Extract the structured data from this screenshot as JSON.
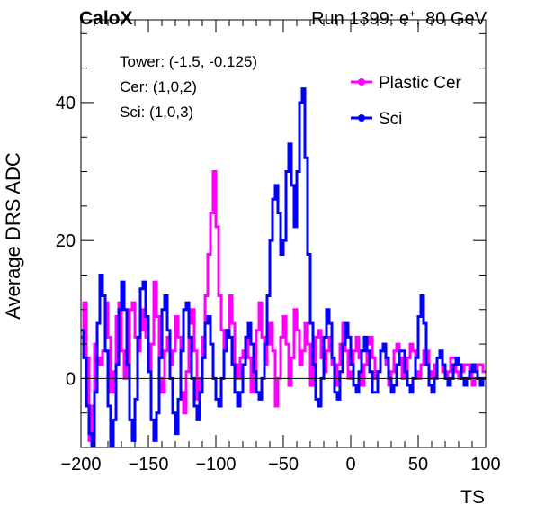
{
  "header": {
    "experiment": "CaloX",
    "run_prefix": "Run 1399: e",
    "run_sup": "+",
    "run_suffix": ", 80 GeV"
  },
  "info": {
    "tower": "Tower: (-1.5, -0.125)",
    "cer": "Cer: (1,0,2)",
    "sci": "Sci: (1,0,3)"
  },
  "chart_data": {
    "type": "line",
    "style": "step",
    "xlabel": "TS",
    "ylabel": "Average DRS ADC",
    "xlim": [
      -200,
      100
    ],
    "ylim": [
      -10,
      52
    ],
    "xticks": [
      -200,
      -150,
      -100,
      -50,
      0,
      50,
      100
    ],
    "yticks": [
      0,
      20,
      40
    ],
    "grid": false,
    "legend_position": "top-right",
    "series": [
      {
        "name": "Plastic Cer",
        "color": "#ff00ff",
        "x_start": -200,
        "x_step": 2,
        "values": [
          6,
          11,
          3,
          -9,
          -4,
          5,
          3,
          2,
          4,
          11,
          6,
          -2,
          1,
          9,
          11,
          4,
          0,
          2,
          10,
          11,
          6,
          4,
          7,
          10,
          6,
          1,
          5,
          14,
          9,
          0,
          -2,
          4,
          6,
          2,
          4,
          9,
          6,
          -2,
          -5,
          1,
          8,
          10,
          4,
          -3,
          0,
          6,
          12,
          18,
          24,
          30,
          22,
          12,
          7,
          4,
          7,
          12,
          8,
          2,
          0,
          3,
          4,
          6,
          3,
          -2,
          1,
          7,
          11,
          6,
          2,
          5,
          8,
          4,
          -4,
          0,
          6,
          9,
          5,
          -1,
          3,
          10,
          7,
          2,
          4,
          8,
          5,
          -1,
          2,
          6,
          7,
          3,
          1,
          4,
          6,
          2,
          -1,
          2,
          5,
          8,
          4,
          0,
          1,
          4,
          6,
          3,
          -1,
          2,
          5,
          6,
          3,
          0,
          1,
          4,
          5,
          2,
          -1,
          1,
          4,
          5,
          3,
          0,
          1,
          3,
          5,
          4,
          1,
          0,
          2,
          4,
          4,
          1,
          0,
          2,
          3,
          3,
          1,
          0,
          1,
          3,
          3,
          1,
          0,
          1,
          2,
          2,
          1,
          -1,
          0,
          2,
          2,
          1
        ]
      },
      {
        "name": "Sci",
        "color": "#0000ff",
        "x_start": -200,
        "x_step": 2,
        "values": [
          7,
          3,
          -4,
          -8,
          -10,
          -2,
          8,
          15,
          12,
          4,
          -4,
          -10,
          -6,
          2,
          10,
          14,
          10,
          2,
          -6,
          -9,
          -3,
          6,
          13,
          14,
          9,
          1,
          -6,
          -9,
          -5,
          3,
          10,
          12,
          7,
          0,
          -5,
          -8,
          -3,
          4,
          10,
          11,
          6,
          0,
          -4,
          -6,
          -2,
          3,
          8,
          9,
          5,
          0,
          -3,
          -4,
          0,
          4,
          7,
          6,
          2,
          -2,
          -4,
          -2,
          2,
          6,
          8,
          5,
          1,
          -2,
          -3,
          0,
          5,
          12,
          20,
          26,
          28,
          24,
          18,
          20,
          30,
          34,
          28,
          22,
          30,
          40,
          42,
          32,
          18,
          8,
          2,
          -3,
          -4,
          0,
          6,
          10,
          8,
          3,
          -2,
          -3,
          1,
          5,
          8,
          6,
          2,
          -1,
          -2,
          1,
          4,
          6,
          4,
          1,
          -2,
          -2,
          1,
          4,
          5,
          3,
          0,
          -2,
          -1,
          2,
          4,
          4,
          1,
          -1,
          -2,
          0,
          3,
          9,
          12,
          8,
          2,
          -1,
          -2,
          0,
          3,
          4,
          2,
          0,
          -1,
          0,
          2,
          3,
          2,
          0,
          -1,
          0,
          1,
          2,
          1,
          0,
          -1,
          0
        ]
      }
    ]
  }
}
